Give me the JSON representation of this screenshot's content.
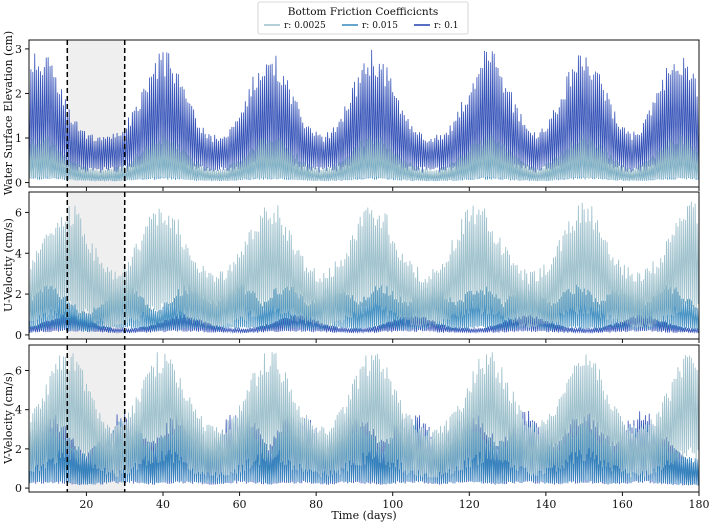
{
  "chart_data": {
    "type": "line",
    "legend": {
      "title": "Bottom Friction Coefficicnts",
      "placement": "top-center",
      "entries": [
        {
          "label": "r: 0.0025",
          "color": "#9bbfca"
        },
        {
          "label": "r: 0.015",
          "color": "#3487bd"
        },
        {
          "label": "r: 0.1",
          "color": "#2040b0"
        }
      ]
    },
    "xlabel": "Time (days)",
    "xlim": [
      5,
      180
    ],
    "xticks": [
      20,
      40,
      60,
      80,
      100,
      120,
      140,
      160,
      180
    ],
    "highlight_window": {
      "start": 15,
      "end": 30,
      "style": "shaded gray with dashed black borders"
    },
    "series_names": [
      "r: 0.0025",
      "r: 0.015",
      "r: 0.1"
    ],
    "series_colors": [
      "#9bbfca",
      "#3487bd",
      "#2040b0"
    ],
    "panels": [
      {
        "ylabel": "Water Surface Elevation (cm)",
        "ylim": [
          -0.1,
          3.2
        ],
        "yticks": [
          0,
          1,
          2,
          3
        ],
        "series": [
          {
            "name": "r: 0.0025",
            "envelope": {
              "base": [
                0.15,
                0.05,
                0.2
              ],
              "amp": [
                0.7,
                0.3,
                1.1
              ],
              "peaks_at": [
                8,
                40,
                68,
                95,
                125,
                150,
                175
              ]
            }
          },
          {
            "name": "r: 0.015",
            "envelope": {
              "base": [
                0.1,
                0.05,
                0.15
              ],
              "amp": [
                0.5,
                0.2,
                0.8
              ],
              "peaks_at": [
                8,
                40,
                68,
                95,
                125,
                150,
                175
              ]
            }
          },
          {
            "name": "r: 0.1",
            "envelope": {
              "base": [
                0.5,
                0.35,
                0.6
              ],
              "amp": [
                2.0,
                1.0,
                3.0
              ],
              "peaks_at": [
                8,
                40,
                68,
                95,
                125,
                150,
                175
              ]
            }
          }
        ]
      },
      {
        "ylabel": "U-Velocity  (cm/s)",
        "ylim": [
          -0.2,
          7.0
        ],
        "yticks": [
          0,
          2,
          4,
          6
        ],
        "series": [
          {
            "name": "r: 0.0025",
            "envelope": {
              "base": [
                1.2,
                0.5,
                2.5
              ],
              "amp": [
                4.2,
                3.0,
                6.6
              ],
              "peaks_at": [
                15,
                40,
                68,
                95,
                122,
                150,
                178
              ]
            }
          },
          {
            "name": "r: 0.015",
            "envelope": {
              "base": [
                0.3,
                0.2,
                0.6
              ],
              "amp": [
                1.5,
                0.8,
                2.5
              ],
              "peaks_at": [
                10,
                30,
                47,
                60,
                72,
                85,
                97,
                110,
                123,
                135,
                148,
                160,
                172
              ]
            }
          },
          {
            "name": "r: 0.1",
            "envelope": {
              "base": [
                0.2,
                0.15,
                0.3
              ],
              "amp": [
                0.6,
                0.3,
                1.0
              ],
              "peaks_at": [
                15,
                45,
                75,
                105,
                135,
                165
              ]
            }
          }
        ]
      },
      {
        "ylabel": "V-Velocity (cm/s)",
        "ylim": [
          -0.2,
          7.3
        ],
        "yticks": [
          0,
          2,
          4,
          6
        ],
        "series": [
          {
            "name": "r: 0.0025",
            "envelope": {
              "base": [
                1.5,
                0.8,
                3.0
              ],
              "amp": [
                4.5,
                3.0,
                7.1
              ],
              "peaks_at": [
                15,
                40,
                68,
                95,
                125,
                150,
                178
              ]
            }
          },
          {
            "name": "r: 0.015",
            "envelope": {
              "base": [
                0.3,
                0.2,
                0.6
              ],
              "amp": [
                2.5,
                1.5,
                3.5
              ],
              "peaks_at": [
                10,
                30,
                45,
                60,
                75,
                90,
                105,
                120,
                135,
                150,
                165
              ]
            }
          },
          {
            "name": "r: 0.1",
            "envelope": {
              "base": [
                0.3,
                0.2,
                0.5
              ],
              "amp": [
                3.0,
                1.5,
                4.0
              ],
              "peaks_at": [
                10,
                30,
                45,
                60,
                75,
                90,
                105,
                120,
                135,
                150,
                165
              ]
            }
          }
        ]
      }
    ]
  }
}
